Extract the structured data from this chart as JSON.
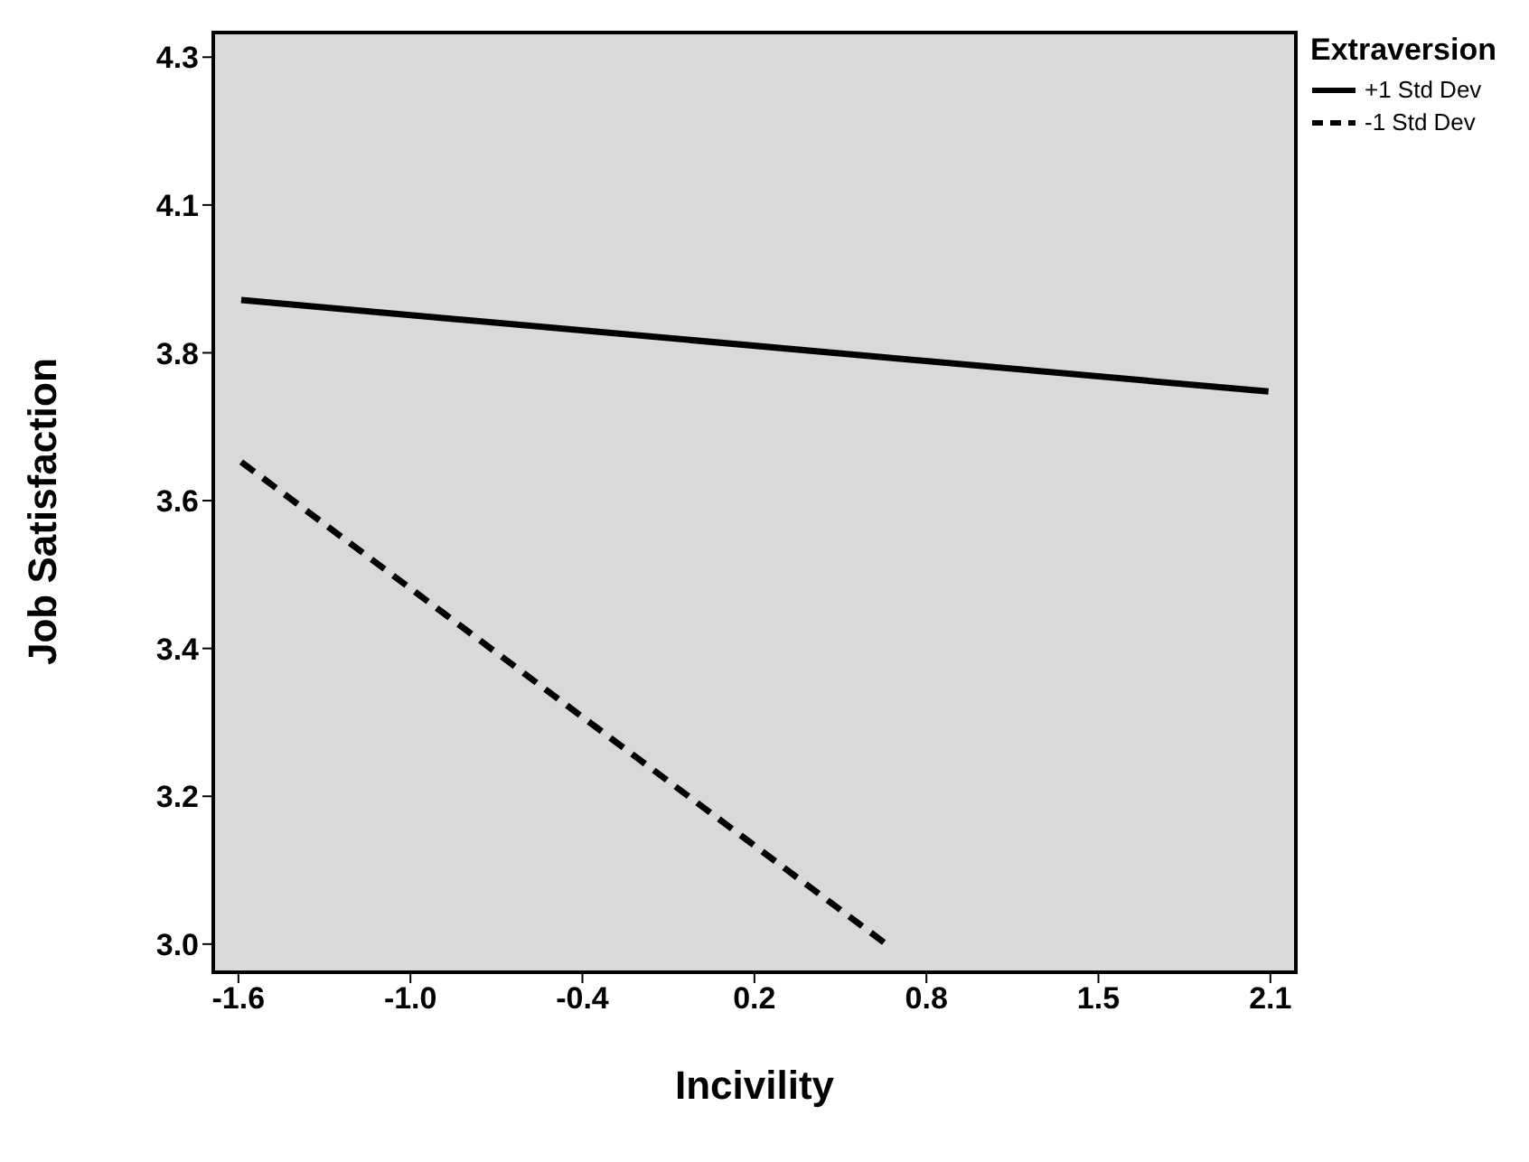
{
  "chart_data": {
    "type": "line",
    "xlabel": "Incivility",
    "ylabel": "Job Satisfaction",
    "legend_title": "Extraversion",
    "legend": "top right",
    "marker": "none",
    "xlim": [
      -1.705,
      2.166
    ],
    "ylim": [
      2.965,
      4.3
    ],
    "xticks": [
      {
        "value": -1.615,
        "label": "-1.6"
      },
      {
        "value": -1.0,
        "label": "-1.0"
      },
      {
        "value": -0.385,
        "label": "-0.4"
      },
      {
        "value": 0.23,
        "label": "0.2"
      },
      {
        "value": 0.845,
        "label": "0.8"
      },
      {
        "value": 1.46,
        "label": "1.5"
      },
      {
        "value": 2.075,
        "label": "2.1"
      }
    ],
    "yticks": [
      {
        "value": 3.005,
        "label": "3.0"
      },
      {
        "value": 3.215,
        "label": "3.2"
      },
      {
        "value": 3.425,
        "label": "3.4"
      },
      {
        "value": 3.635,
        "label": "3.6"
      },
      {
        "value": 3.845,
        "label": "3.8"
      },
      {
        "value": 4.055,
        "label": "4.1"
      },
      {
        "value": 4.265,
        "label": "4.3"
      }
    ],
    "series": [
      {
        "name": "+1 Std Dev",
        "color": "#000000",
        "line_style": "solid",
        "x": [
          -1.605,
          2.068
        ],
        "values": [
          3.92,
          3.79
        ]
      },
      {
        "name": "-1 Std Dev",
        "color": "#000000",
        "line_style": "dashed",
        "x": [
          -1.605,
          0.718
        ],
        "values": [
          3.69,
          3.0
        ]
      }
    ]
  }
}
